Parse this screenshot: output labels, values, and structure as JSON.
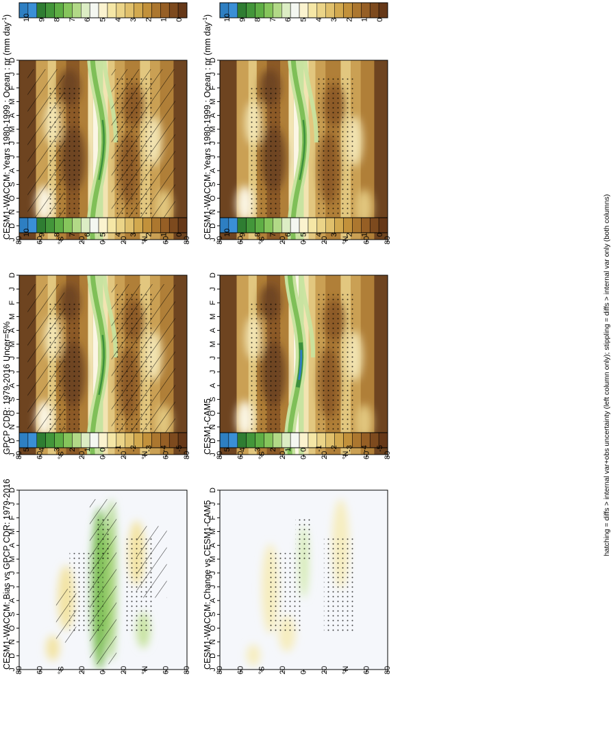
{
  "figure": {
    "footnote": "hatching = diffs > internal var+obs uncertainty (left column only); stippling = diffs > internal var only (both columns)"
  },
  "axes": {
    "months": [
      "D",
      "J",
      "F",
      "M",
      "A",
      "M",
      "J",
      "J",
      "A",
      "S",
      "O",
      "N",
      "D",
      "J"
    ],
    "lat_ticks": [
      "80",
      "60",
      "°N",
      "20",
      "0",
      "20",
      "°S",
      "60",
      "80"
    ]
  },
  "colorbars": {
    "absolute": {
      "labels": [
        "10",
        "9",
        "8",
        "7",
        "6",
        "5",
        "4",
        "3",
        "2",
        "1",
        "0"
      ],
      "colors": [
        "#2e7fc2",
        "#3a8fd6",
        "#2f7d32",
        "#43963a",
        "#5fae45",
        "#86c55c",
        "#b2d987",
        "#dcedc4",
        "#f4f7f1",
        "#fbf3cf",
        "#f5e7a6",
        "#ebd488",
        "#e0c06c",
        "#d2a94f",
        "#c2913b",
        "#ac772f",
        "#965f25",
        "#7d4a1e",
        "#663818"
      ]
    },
    "difference": {
      "labels": [
        "5",
        "4",
        "3",
        "2",
        "1",
        "0",
        "-1",
        "-2",
        "-3",
        "-4",
        "-5"
      ],
      "colors": [
        "#2e7fc2",
        "#3a8fd6",
        "#2f7d32",
        "#43963a",
        "#5fae45",
        "#86c55c",
        "#b2d987",
        "#dcedc4",
        "#f4f7f1",
        "#fbf3cf",
        "#f5e7a6",
        "#ebd488",
        "#e0c06c",
        "#d2a94f",
        "#c2913b",
        "#ac772f",
        "#965f25",
        "#7d4a1e",
        "#663818"
      ]
    }
  },
  "panels": [
    {
      "id": "wacc-left",
      "title": "CESM1-WACCM: Years 1980-1999 : Ocean : pr (mm day",
      "title_sup": "-1",
      "title_close": ")",
      "kind": "abs",
      "hatch": true,
      "stipple": true
    },
    {
      "id": "gpcp",
      "title": "GPCP CDR: 1979-2016 Uncer=5%",
      "title_sup": "",
      "title_close": "",
      "kind": "abs",
      "hatch": true,
      "stipple": true
    },
    {
      "id": "bias",
      "title": "CESM1-WACCM: Bias vs GPCP CDR: 1979-2016",
      "title_sup": "",
      "title_close": "",
      "kind": "diff",
      "hatch": true,
      "stipple": true
    },
    {
      "id": "wacc-right",
      "title": "CESM1-WACCM: Years 1980-1999 : Ocean : pr (mm day",
      "title_sup": "-1",
      "title_close": ")",
      "kind": "abs",
      "hatch": false,
      "stipple": true
    },
    {
      "id": "cam5",
      "title": "CESM1-CAM5",
      "title_sup": "",
      "title_close": "",
      "kind": "abs",
      "hatch": false,
      "stipple": true
    },
    {
      "id": "change",
      "title": "CESM1-WACCM: Change vs CESM1-CAM5",
      "title_sup": "",
      "title_close": "",
      "kind": "diff",
      "hatch": false,
      "stipple": true
    }
  ],
  "chart_data": [
    {
      "type": "heatmap",
      "title": "CESM1-WACCM: Years 1980-1999 : Ocean : pr (mm day-1)",
      "x": [
        "D",
        "J",
        "F",
        "M",
        "A",
        "M",
        "J",
        "J",
        "A",
        "S",
        "O",
        "N",
        "D",
        "J"
      ],
      "y": [
        "80",
        "60",
        "°N",
        "20",
        "0",
        "20",
        "°S",
        "60",
        "80"
      ],
      "value_range": [
        0,
        10
      ]
    },
    {
      "type": "heatmap",
      "title": "GPCP CDR: 1979-2016 Uncer=5%",
      "x": [
        "D",
        "J",
        "F",
        "M",
        "A",
        "M",
        "J",
        "J",
        "A",
        "S",
        "O",
        "N",
        "D",
        "J"
      ],
      "y": [
        "80",
        "60",
        "°N",
        "20",
        "0",
        "20",
        "°S",
        "60",
        "80"
      ],
      "value_range": [
        0,
        10
      ]
    },
    {
      "type": "heatmap",
      "title": "CESM1-WACCM: Bias vs GPCP CDR: 1979-2016",
      "x": [
        "D",
        "J",
        "F",
        "M",
        "A",
        "M",
        "J",
        "J",
        "A",
        "S",
        "O",
        "N",
        "D",
        "J"
      ],
      "y": [
        "80",
        "60",
        "°N",
        "20",
        "0",
        "20",
        "°S",
        "60",
        "80"
      ],
      "value_range": [
        -5,
        5
      ]
    },
    {
      "type": "heatmap",
      "title": "CESM1-WACCM: Years 1980-1999 : Ocean : pr (mm day-1)",
      "x": [
        "D",
        "J",
        "F",
        "M",
        "A",
        "M",
        "J",
        "J",
        "A",
        "S",
        "O",
        "N",
        "D",
        "J"
      ],
      "y": [
        "80",
        "60",
        "°N",
        "20",
        "0",
        "20",
        "°S",
        "60",
        "80"
      ],
      "value_range": [
        0,
        10
      ]
    },
    {
      "type": "heatmap",
      "title": "CESM1-CAM5",
      "x": [
        "D",
        "J",
        "F",
        "M",
        "A",
        "M",
        "J",
        "J",
        "A",
        "S",
        "O",
        "N",
        "D",
        "J"
      ],
      "y": [
        "80",
        "60",
        "°N",
        "20",
        "0",
        "20",
        "°S",
        "60",
        "80"
      ],
      "value_range": [
        0,
        10
      ]
    },
    {
      "type": "heatmap",
      "title": "CESM1-WACCM: Change vs CESM1-CAM5",
      "x": [
        "D",
        "J",
        "F",
        "M",
        "A",
        "M",
        "J",
        "J",
        "A",
        "S",
        "O",
        "N",
        "D",
        "J"
      ],
      "y": [
        "80",
        "60",
        "°N",
        "20",
        "0",
        "20",
        "°S",
        "60",
        "80"
      ],
      "value_range": [
        -5,
        5
      ]
    }
  ]
}
